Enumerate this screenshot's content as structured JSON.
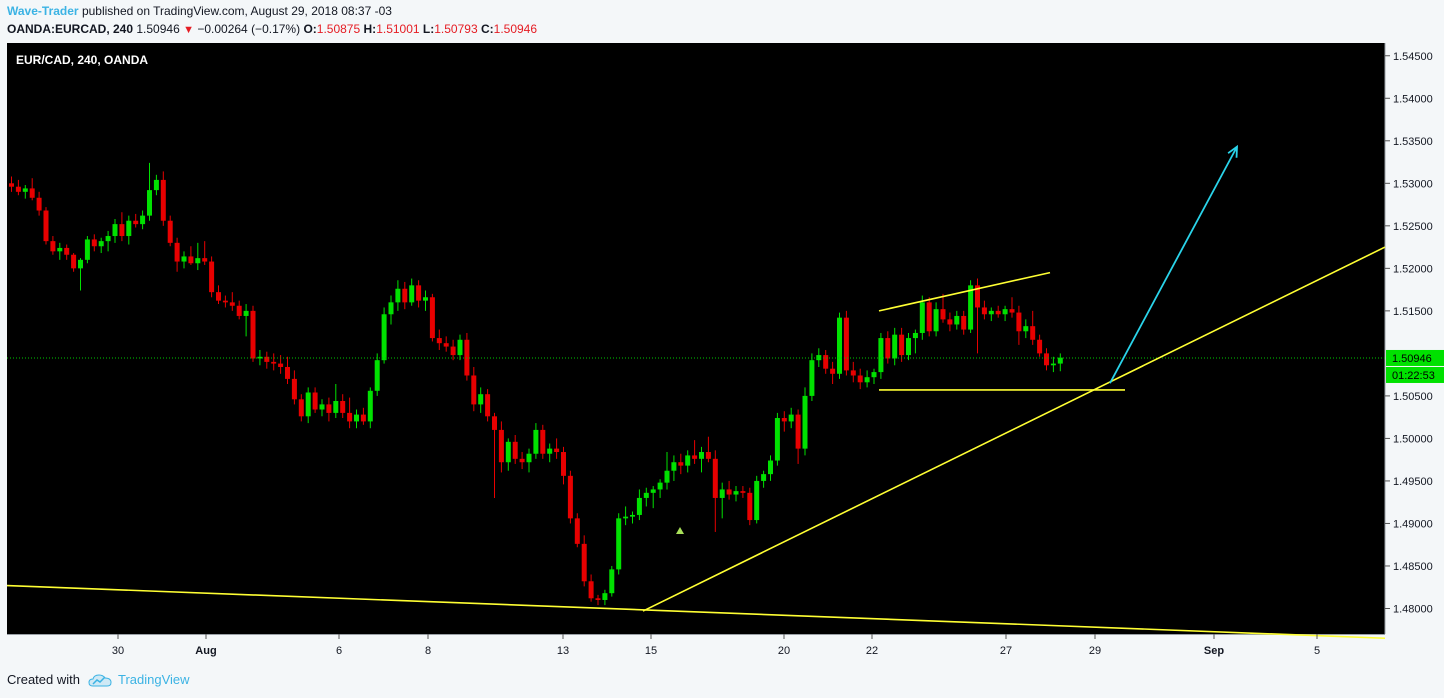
{
  "header": {
    "author": "Wave-Trader",
    "published_text": "published on TradingView.com, August 29, 2018 08:37 -03",
    "symbol": "OANDA:EURCAD, 240",
    "last": "1.50946",
    "change": "−0.00264 (−0.17%)",
    "o_label": "O:",
    "o_value": "1.50875",
    "h_label": "H:",
    "h_value": "1.51001",
    "l_label": "L:",
    "l_value": "1.50793",
    "c_label": "C:",
    "c_value": "1.50946"
  },
  "footer": {
    "created_with": "Created with",
    "brand": "TradingView"
  },
  "colors": {
    "background": "#000000",
    "up": "#00e100",
    "down": "#e80000",
    "trendline": "#ffff33",
    "arrow": "#2ad4ea",
    "last_price_line": "#00c800",
    "price_tag": "#00e100"
  },
  "chart_data": {
    "type": "candlestick",
    "symbol_label": "EUR/CAD, 240, OANDA",
    "x_ticks": [
      "30",
      "Aug",
      "6",
      "8",
      "13",
      "15",
      "20",
      "22",
      "27",
      "29",
      "Sep",
      "5"
    ],
    "y_ticks": [
      "1.54500",
      "1.54000",
      "1.53500",
      "1.53000",
      "1.52500",
      "1.52000",
      "1.51500",
      "1.50500",
      "1.50000",
      "1.49500",
      "1.49000",
      "1.48500",
      "1.48000"
    ],
    "ylim": [
      1.477,
      1.5465
    ],
    "last_price": "1.50946",
    "countdown": "01:22:53",
    "candles": [
      [
        1.53,
        1.5308,
        1.529,
        1.5296
      ],
      [
        1.5296,
        1.5304,
        1.5286,
        1.529
      ],
      [
        1.529,
        1.5298,
        1.5282,
        1.5294
      ],
      [
        1.5294,
        1.5306,
        1.528,
        1.5283
      ],
      [
        1.5283,
        1.529,
        1.5262,
        1.5268
      ],
      [
        1.5268,
        1.5272,
        1.5228,
        1.5232
      ],
      [
        1.5232,
        1.5238,
        1.5216,
        1.522
      ],
      [
        1.522,
        1.523,
        1.521,
        1.5224
      ],
      [
        1.5224,
        1.5228,
        1.521,
        1.5216
      ],
      [
        1.5216,
        1.5218,
        1.5196,
        1.52
      ],
      [
        1.52,
        1.5212,
        1.5174,
        1.521
      ],
      [
        1.521,
        1.5238,
        1.5206,
        1.5234
      ],
      [
        1.5234,
        1.524,
        1.522,
        1.5226
      ],
      [
        1.5226,
        1.5236,
        1.5218,
        1.5232
      ],
      [
        1.5232,
        1.5244,
        1.522,
        1.5238
      ],
      [
        1.5238,
        1.5258,
        1.523,
        1.5252
      ],
      [
        1.5252,
        1.5266,
        1.5232,
        1.5238
      ],
      [
        1.5238,
        1.5262,
        1.5228,
        1.5256
      ],
      [
        1.5256,
        1.5264,
        1.5248,
        1.5252
      ],
      [
        1.5252,
        1.5268,
        1.5246,
        1.5262
      ],
      [
        1.5262,
        1.5324,
        1.5256,
        1.5292
      ],
      [
        1.5292,
        1.531,
        1.5286,
        1.5304
      ],
      [
        1.5304,
        1.5314,
        1.525,
        1.5256
      ],
      [
        1.5256,
        1.5262,
        1.5226,
        1.523
      ],
      [
        1.523,
        1.5236,
        1.5196,
        1.5208
      ],
      [
        1.5208,
        1.522,
        1.52,
        1.5214
      ],
      [
        1.5214,
        1.5226,
        1.5204,
        1.5206
      ],
      [
        1.5206,
        1.523,
        1.5198,
        1.5212
      ],
      [
        1.5212,
        1.5232,
        1.5204,
        1.5208
      ],
      [
        1.5208,
        1.5214,
        1.5166,
        1.5172
      ],
      [
        1.5172,
        1.518,
        1.5158,
        1.5162
      ],
      [
        1.5162,
        1.5168,
        1.5154,
        1.516
      ],
      [
        1.516,
        1.5172,
        1.515,
        1.5156
      ],
      [
        1.5156,
        1.5162,
        1.514,
        1.5144
      ],
      [
        1.5144,
        1.5158,
        1.512,
        1.515
      ],
      [
        1.515,
        1.5156,
        1.509,
        1.5094
      ],
      [
        1.5094,
        1.5104,
        1.5086,
        1.5096
      ],
      [
        1.5096,
        1.5102,
        1.5082,
        1.509
      ],
      [
        1.509,
        1.51,
        1.508,
        1.5088
      ],
      [
        1.5088,
        1.5098,
        1.5076,
        1.5084
      ],
      [
        1.5084,
        1.5096,
        1.5064,
        1.507
      ],
      [
        1.507,
        1.508,
        1.504,
        1.5046
      ],
      [
        1.5046,
        1.5052,
        1.502,
        1.5026
      ],
      [
        1.5026,
        1.506,
        1.5018,
        1.5054
      ],
      [
        1.5054,
        1.506,
        1.503,
        1.5034
      ],
      [
        1.5034,
        1.5046,
        1.5026,
        1.504
      ],
      [
        1.504,
        1.5048,
        1.502,
        1.503
      ],
      [
        1.503,
        1.5064,
        1.5024,
        1.5044
      ],
      [
        1.5044,
        1.5052,
        1.5024,
        1.503
      ],
      [
        1.503,
        1.5048,
        1.5012,
        1.502
      ],
      [
        1.502,
        1.5034,
        1.5012,
        1.5028
      ],
      [
        1.5028,
        1.5036,
        1.5016,
        1.502
      ],
      [
        1.502,
        1.506,
        1.5012,
        1.5056
      ],
      [
        1.5056,
        1.51,
        1.505,
        1.5092
      ],
      [
        1.5092,
        1.5154,
        1.5088,
        1.5146
      ],
      [
        1.5146,
        1.5168,
        1.5134,
        1.516
      ],
      [
        1.516,
        1.5186,
        1.515,
        1.5176
      ],
      [
        1.5176,
        1.5184,
        1.5152,
        1.516
      ],
      [
        1.516,
        1.5188,
        1.5156,
        1.518
      ],
      [
        1.518,
        1.5186,
        1.5154,
        1.5162
      ],
      [
        1.5162,
        1.5174,
        1.515,
        1.5166
      ],
      [
        1.5166,
        1.517,
        1.5114,
        1.5118
      ],
      [
        1.5118,
        1.5128,
        1.5104,
        1.5112
      ],
      [
        1.5112,
        1.512,
        1.5102,
        1.5108
      ],
      [
        1.5108,
        1.5116,
        1.5092,
        1.5098
      ],
      [
        1.5098,
        1.5122,
        1.5092,
        1.5116
      ],
      [
        1.5116,
        1.5124,
        1.5068,
        1.5074
      ],
      [
        1.5074,
        1.5084,
        1.5032,
        1.504
      ],
      [
        1.504,
        1.506,
        1.503,
        1.5052
      ],
      [
        1.5052,
        1.5058,
        1.502,
        1.5026
      ],
      [
        1.5026,
        1.503,
        1.493,
        1.501
      ],
      [
        1.501,
        1.502,
        1.496,
        1.4972
      ],
      [
        1.4972,
        1.5,
        1.4962,
        1.4996
      ],
      [
        1.4996,
        1.5004,
        1.497,
        1.4976
      ],
      [
        1.4976,
        1.4984,
        1.4964,
        1.4972
      ],
      [
        1.4972,
        1.4988,
        1.496,
        1.4982
      ],
      [
        1.4982,
        1.5018,
        1.4976,
        1.501
      ],
      [
        1.501,
        1.5016,
        1.4976,
        1.4982
      ],
      [
        1.4982,
        1.4994,
        1.4972,
        1.4988
      ],
      [
        1.4988,
        1.5,
        1.4976,
        1.4984
      ],
      [
        1.4984,
        1.499,
        1.4946,
        1.4956
      ],
      [
        1.4956,
        1.4962,
        1.49,
        1.4906
      ],
      [
        1.4906,
        1.4912,
        1.4872,
        1.4876
      ],
      [
        1.4876,
        1.4886,
        1.4826,
        1.4832
      ],
      [
        1.4832,
        1.484,
        1.4808,
        1.4812
      ],
      [
        1.4812,
        1.4816,
        1.4804,
        1.481
      ],
      [
        1.481,
        1.4822,
        1.4804,
        1.4818
      ],
      [
        1.4818,
        1.485,
        1.4814,
        1.4846
      ],
      [
        1.4846,
        1.4912,
        1.484,
        1.4906
      ],
      [
        1.4906,
        1.492,
        1.4898,
        1.4908
      ],
      [
        1.4908,
        1.4914,
        1.49,
        1.491
      ],
      [
        1.491,
        1.494,
        1.4904,
        1.493
      ],
      [
        1.493,
        1.4942,
        1.492,
        1.4936
      ],
      [
        1.4936,
        1.4944,
        1.4918,
        1.494
      ],
      [
        1.494,
        1.4952,
        1.493,
        1.4948
      ],
      [
        1.4948,
        1.4984,
        1.494,
        1.4962
      ],
      [
        1.4962,
        1.498,
        1.495,
        1.4972
      ],
      [
        1.4972,
        1.4982,
        1.4958,
        1.4968
      ],
      [
        1.4968,
        1.4986,
        1.496,
        1.498
      ],
      [
        1.498,
        1.4998,
        1.497,
        1.4976
      ],
      [
        1.4976,
        1.499,
        1.496,
        1.4984
      ],
      [
        1.4984,
        1.5002,
        1.4972,
        1.4976
      ],
      [
        1.4976,
        1.4986,
        1.489,
        1.493
      ],
      [
        1.493,
        1.4948,
        1.4906,
        1.494
      ],
      [
        1.494,
        1.495,
        1.4928,
        1.4934
      ],
      [
        1.4934,
        1.4944,
        1.4926,
        1.4938
      ],
      [
        1.4938,
        1.4944,
        1.493,
        1.4936
      ],
      [
        1.4936,
        1.4942,
        1.4898,
        1.4904
      ],
      [
        1.4904,
        1.4956,
        1.49,
        1.495
      ],
      [
        1.495,
        1.4962,
        1.4942,
        1.4958
      ],
      [
        1.4958,
        1.498,
        1.495,
        1.4974
      ],
      [
        1.4974,
        1.503,
        1.4968,
        1.5024
      ],
      [
        1.5024,
        1.5032,
        1.5008,
        1.502
      ],
      [
        1.502,
        1.5036,
        1.5012,
        1.5028
      ],
      [
        1.5028,
        1.5034,
        1.497,
        1.4988
      ],
      [
        1.4988,
        1.506,
        1.498,
        1.505
      ],
      [
        1.505,
        1.51,
        1.5044,
        1.5092
      ],
      [
        1.5092,
        1.5106,
        1.5084,
        1.5098
      ],
      [
        1.5098,
        1.5104,
        1.5076,
        1.5082
      ],
      [
        1.5082,
        1.509,
        1.5064,
        1.5076
      ],
      [
        1.5076,
        1.5148,
        1.507,
        1.5142
      ],
      [
        1.5142,
        1.515,
        1.5074,
        1.508
      ],
      [
        1.508,
        1.509,
        1.5066,
        1.5074
      ],
      [
        1.5074,
        1.5082,
        1.5058,
        1.5066
      ],
      [
        1.5066,
        1.508,
        1.506,
        1.5072
      ],
      [
        1.5072,
        1.5082,
        1.5064,
        1.5078
      ],
      [
        1.5078,
        1.5124,
        1.507,
        1.5118
      ],
      [
        1.5118,
        1.5126,
        1.5088,
        1.5094
      ],
      [
        1.5094,
        1.513,
        1.5086,
        1.5122
      ],
      [
        1.5122,
        1.513,
        1.509,
        1.5098
      ],
      [
        1.5098,
        1.5124,
        1.5092,
        1.5118
      ],
      [
        1.5118,
        1.5128,
        1.51,
        1.5124
      ],
      [
        1.5124,
        1.5168,
        1.5116,
        1.516
      ],
      [
        1.516,
        1.5166,
        1.512,
        1.5126
      ],
      [
        1.5126,
        1.516,
        1.512,
        1.5152
      ],
      [
        1.5152,
        1.517,
        1.5136,
        1.514
      ],
      [
        1.514,
        1.5148,
        1.5126,
        1.5134
      ],
      [
        1.5134,
        1.515,
        1.5128,
        1.5144
      ],
      [
        1.5144,
        1.515,
        1.5122,
        1.5128
      ],
      [
        1.5128,
        1.5186,
        1.5124,
        1.518
      ],
      [
        1.518,
        1.5188,
        1.51,
        1.5154
      ],
      [
        1.5154,
        1.5162,
        1.514,
        1.5146
      ],
      [
        1.5146,
        1.5154,
        1.5138,
        1.515
      ],
      [
        1.515,
        1.5156,
        1.5142,
        1.5146
      ],
      [
        1.5146,
        1.5156,
        1.5138,
        1.5152
      ],
      [
        1.5152,
        1.5166,
        1.5142,
        1.5148
      ],
      [
        1.5148,
        1.5156,
        1.511,
        1.5126
      ],
      [
        1.5126,
        1.514,
        1.5118,
        1.5132
      ],
      [
        1.5132,
        1.515,
        1.511,
        1.5116
      ],
      [
        1.5116,
        1.5122,
        1.5096,
        1.51
      ],
      [
        1.51,
        1.5106,
        1.508,
        1.5086
      ],
      [
        1.5086,
        1.5096,
        1.5078,
        1.5088
      ],
      [
        1.5088,
        1.51,
        1.5079,
        1.5095
      ]
    ]
  }
}
